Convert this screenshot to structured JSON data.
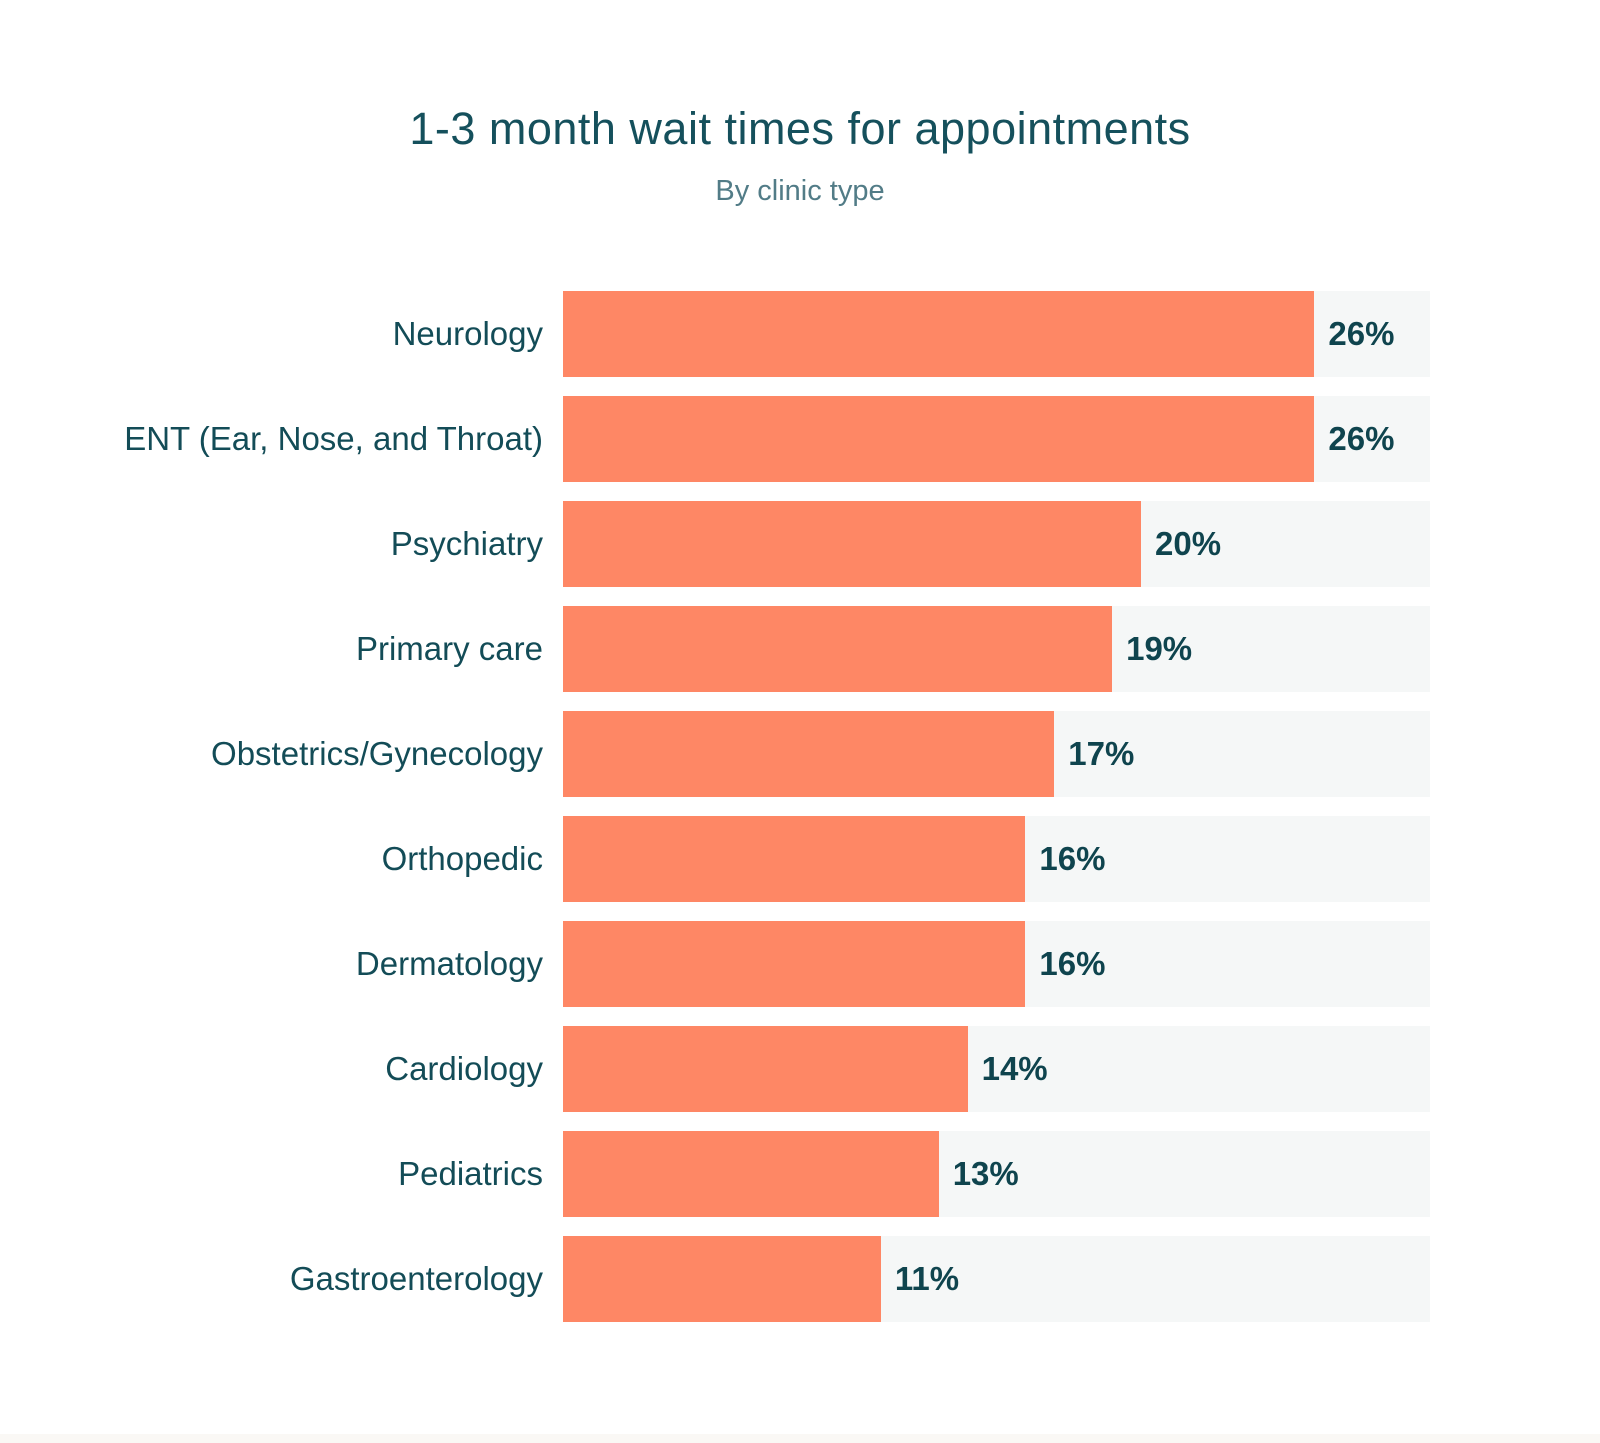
{
  "header": {
    "title": "1-3 month wait times for appointments",
    "subtitle": "By clinic type"
  },
  "colors": {
    "bar": "#FE8765",
    "track": "#F5F7F7",
    "title_text": "#15505C",
    "subtitle_text": "#527C87",
    "label_text": "#134C57",
    "value_text": "#0F444E",
    "bottom_strip": "#FAF8F5"
  },
  "chart_data": {
    "type": "bar",
    "orientation": "horizontal",
    "title": "1-3 month wait times for appointments",
    "subtitle": "By clinic type",
    "categories": [
      "Neurology",
      "ENT (Ear, Nose, and Throat)",
      "Psychiatry",
      "Primary care",
      "Obstetrics/Gynecology",
      "Orthopedic",
      "Dermatology",
      "Cardiology",
      "Pediatrics",
      "Gastroenterology"
    ],
    "values": [
      26,
      26,
      20,
      19,
      17,
      16,
      16,
      14,
      13,
      11
    ],
    "value_labels": [
      "26%",
      "26%",
      "20%",
      "19%",
      "17%",
      "16%",
      "16%",
      "14%",
      "13%",
      "11%"
    ],
    "xlabel": "",
    "ylabel": "",
    "xlim": [
      0,
      30
    ],
    "grid": false,
    "legend": false,
    "value_label_position": "right-of-bar"
  }
}
